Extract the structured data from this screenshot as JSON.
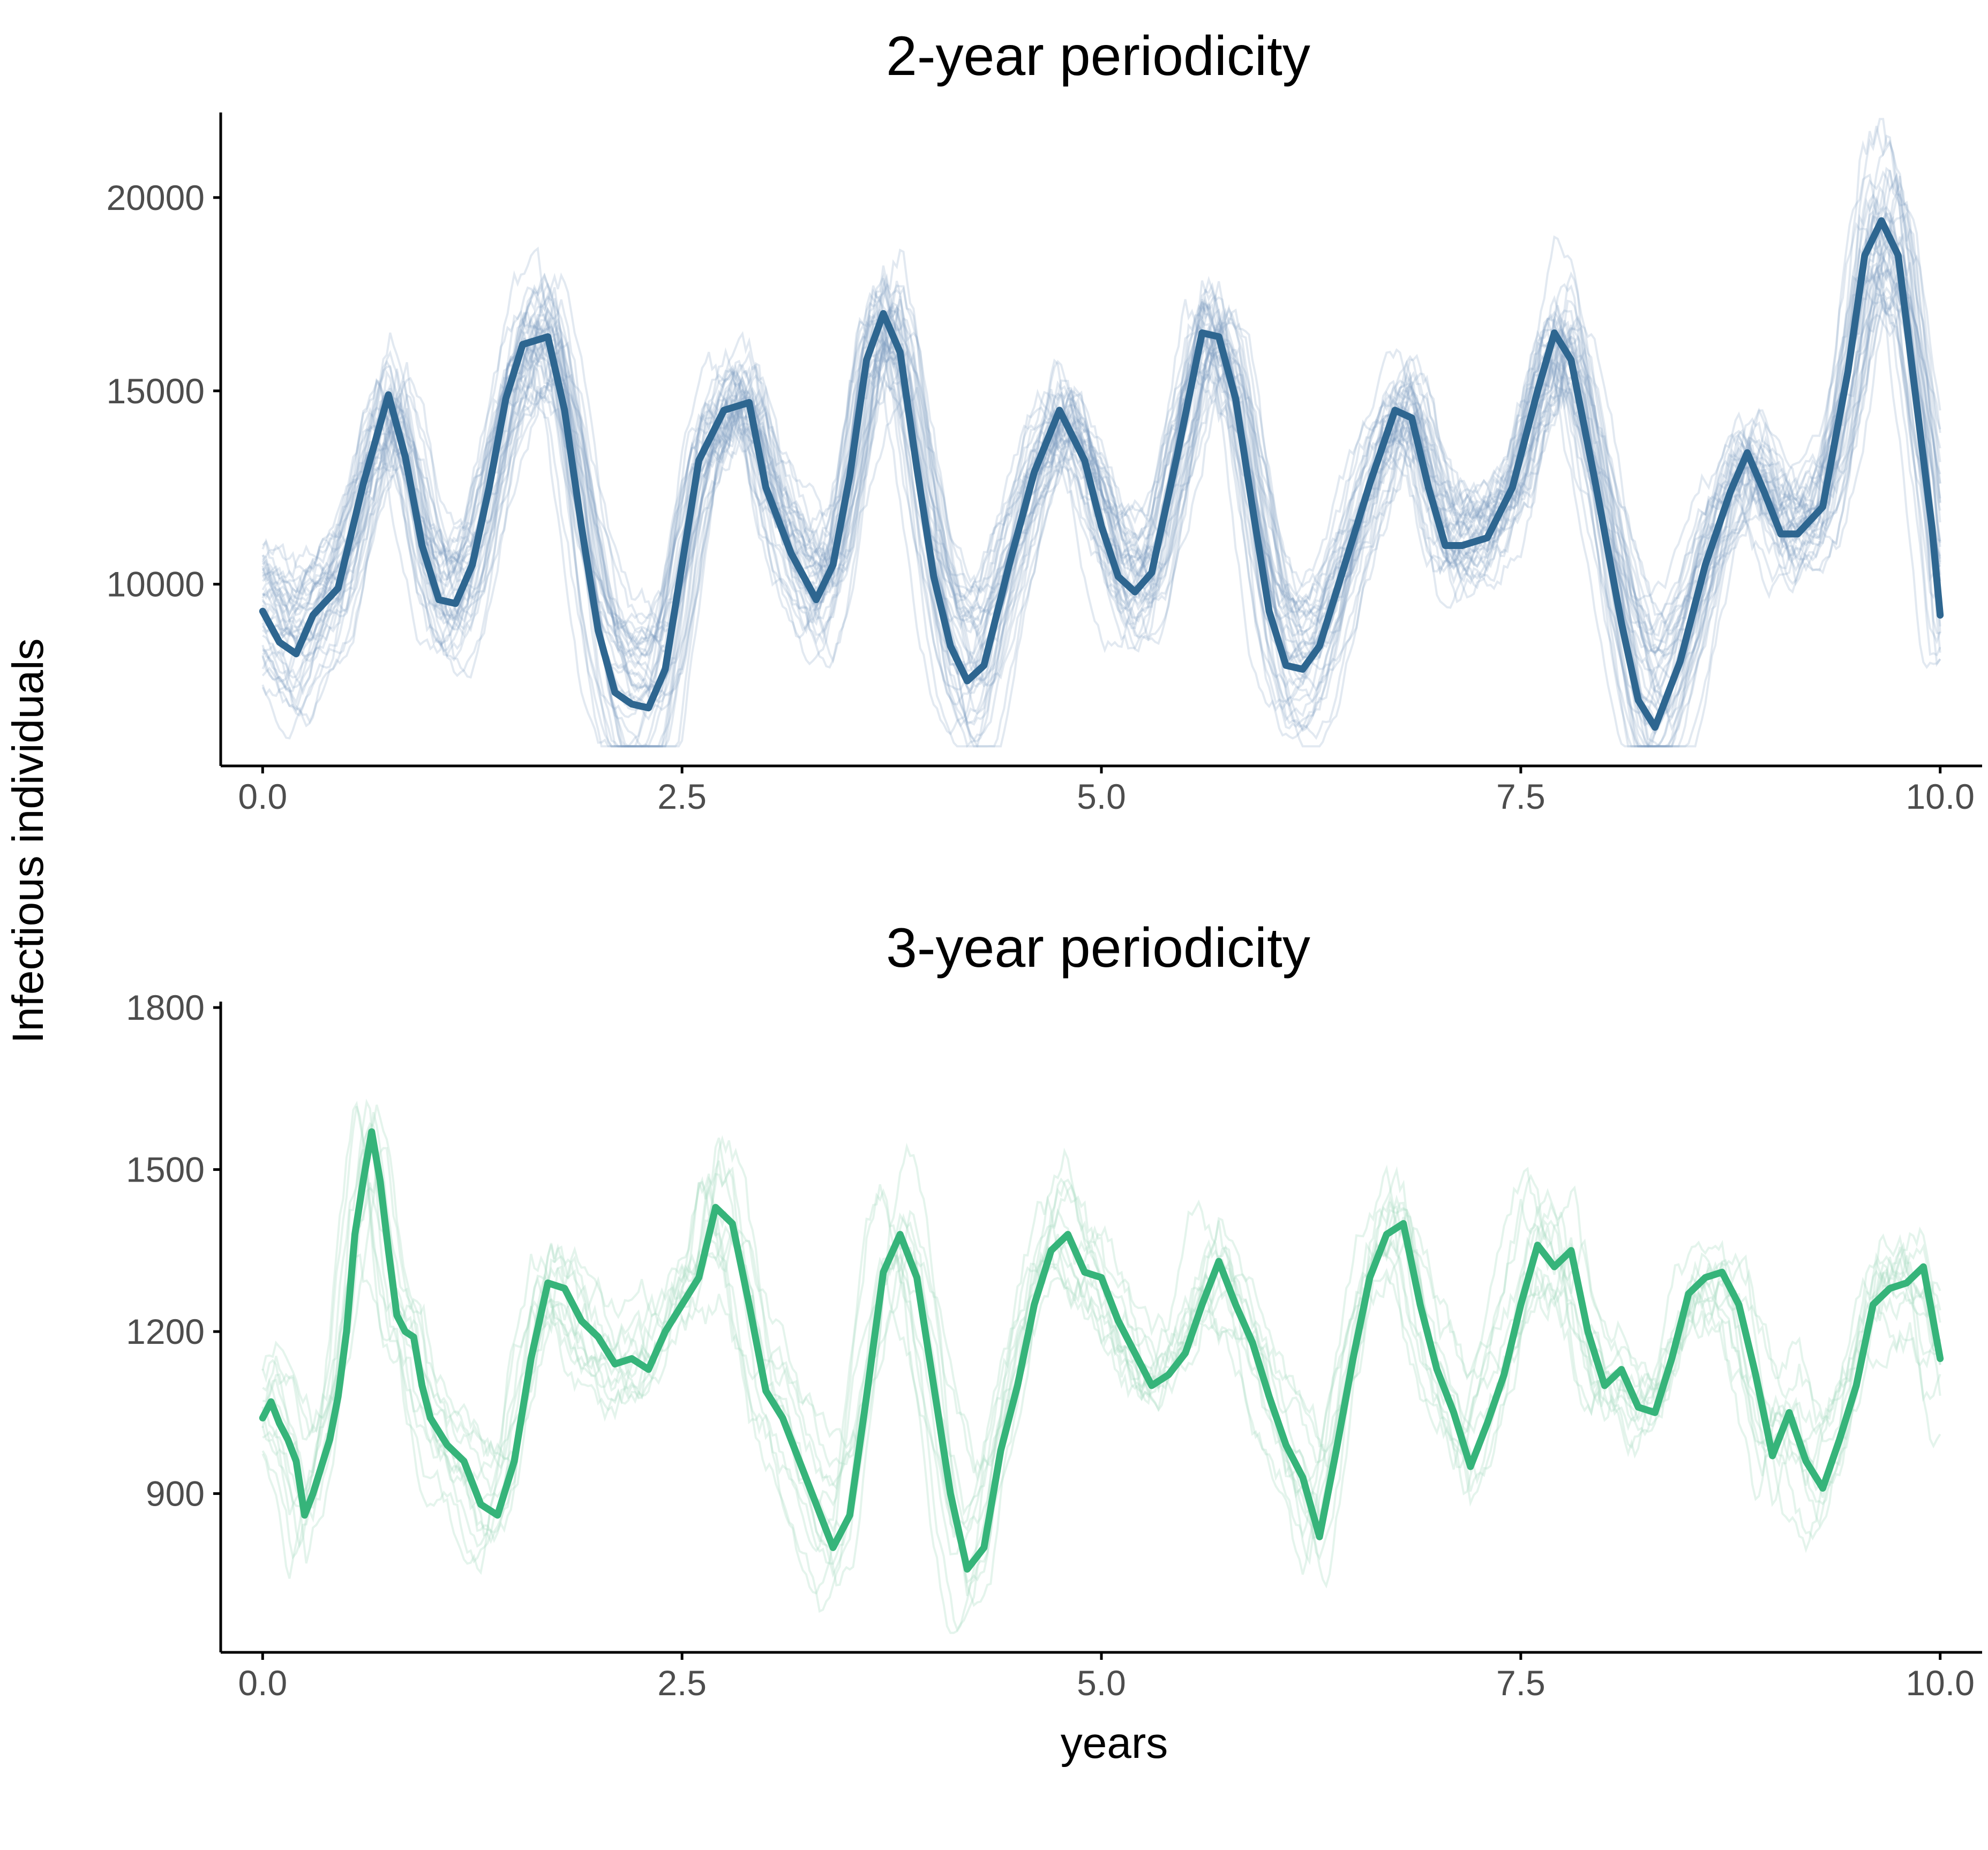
{
  "figure": {
    "ylabel": "Infectious individuals",
    "xlabel": "years"
  },
  "chart_data": [
    {
      "type": "line",
      "title": "2-year periodicity",
      "xlabel": "years",
      "ylabel": "Infectious individuals",
      "xlim": [
        -0.25,
        10.25
      ],
      "ylim": [
        5300,
        22200
      ],
      "xticks": [
        0,
        2.5,
        5,
        7.5,
        10
      ],
      "xtick_labels": [
        "0.0",
        "2.5",
        "5.0",
        "7.5",
        "10.0"
      ],
      "yticks": [
        10000,
        15000,
        20000
      ],
      "ytick_labels": [
        "10000",
        "15000",
        "20000"
      ],
      "grid": false,
      "legend": "none",
      "colors": {
        "highlight": "#2e6690",
        "ensemble": "#7b9bbd"
      },
      "ensemble_description": "many semi-transparent stochastic simulation trajectories oscillating between about 6000 and 21000",
      "ensemble_count": 40,
      "highlight_series": {
        "x": [
          0,
          0.1,
          0.2,
          0.3,
          0.45,
          0.6,
          0.75,
          0.85,
          0.95,
          1.05,
          1.15,
          1.25,
          1.35,
          1.45,
          1.55,
          1.7,
          1.8,
          1.9,
          2.0,
          2.1,
          2.2,
          2.3,
          2.4,
          2.5,
          2.6,
          2.75,
          2.9,
          3.0,
          3.15,
          3.3,
          3.4,
          3.5,
          3.6,
          3.7,
          3.8,
          3.9,
          4.0,
          4.1,
          4.2,
          4.3,
          4.45,
          4.6,
          4.75,
          4.9,
          5.0,
          5.1,
          5.2,
          5.3,
          5.45,
          5.6,
          5.7,
          5.8,
          5.9,
          6.0,
          6.1,
          6.2,
          6.3,
          6.45,
          6.6,
          6.75,
          6.85,
          6.95,
          7.05,
          7.15,
          7.3,
          7.45,
          7.6,
          7.7,
          7.8,
          7.95,
          8.1,
          8.2,
          8.3,
          8.45,
          8.6,
          8.75,
          8.85,
          8.95,
          9.05,
          9.15,
          9.3,
          9.45,
          9.55,
          9.65,
          9.75,
          9.85,
          9.95,
          10.0
        ],
        "y": [
          9300,
          8500,
          8200,
          9200,
          9900,
          12600,
          14900,
          13300,
          11000,
          9600,
          9500,
          10500,
          12500,
          14800,
          16200,
          16400,
          14500,
          11500,
          8800,
          7200,
          6900,
          6800,
          7800,
          10500,
          13200,
          14500,
          14700,
          12500,
          10800,
          9600,
          10500,
          12800,
          15800,
          17000,
          16000,
          13000,
          10200,
          8400,
          7500,
          7900,
          10500,
          12900,
          14500,
          13200,
          11500,
          10200,
          9800,
          10300,
          13300,
          16500,
          16400,
          14800,
          12000,
          9300,
          7900,
          7800,
          8400,
          10500,
          12600,
          14500,
          14300,
          12500,
          11000,
          11000,
          11200,
          12500,
          15000,
          16500,
          15800,
          12500,
          9000,
          7000,
          6300,
          8000,
          10500,
          12400,
          13400,
          12400,
          11300,
          11300,
          12000,
          15500,
          18500,
          19400,
          18500,
          15000,
          11500,
          9200
        ]
      }
    },
    {
      "type": "line",
      "title": "3-year periodicity",
      "xlabel": "years",
      "ylabel": "Infectious individuals",
      "xlim": [
        -0.25,
        10.25
      ],
      "ylim": [
        606,
        1811
      ],
      "xticks": [
        0,
        2.5,
        5,
        7.5,
        10
      ],
      "xtick_labels": [
        "0.0",
        "2.5",
        "5.0",
        "7.5",
        "10.0"
      ],
      "yticks": [
        900,
        1200,
        1500,
        1800
      ],
      "ytick_labels": [
        "900",
        "1200",
        "1500",
        "1800"
      ],
      "grid": false,
      "legend": "none",
      "colors": {
        "highlight": "#36b47a",
        "ensemble": "#a6dcc0"
      },
      "ensemble_description": "several faint stochastic simulation trajectories oscillating between about 700 and 1750",
      "ensemble_count": 12,
      "highlight_series": {
        "x": [
          0,
          0.05,
          0.1,
          0.15,
          0.2,
          0.25,
          0.3,
          0.35,
          0.4,
          0.45,
          0.5,
          0.55,
          0.6,
          0.65,
          0.7,
          0.75,
          0.8,
          0.85,
          0.9,
          0.95,
          1.0,
          1.1,
          1.2,
          1.3,
          1.4,
          1.5,
          1.6,
          1.7,
          1.8,
          1.9,
          2.0,
          2.1,
          2.2,
          2.3,
          2.4,
          2.5,
          2.6,
          2.7,
          2.8,
          2.9,
          3.0,
          3.1,
          3.2,
          3.3,
          3.4,
          3.5,
          3.6,
          3.7,
          3.8,
          3.9,
          4.0,
          4.1,
          4.2,
          4.3,
          4.4,
          4.5,
          4.6,
          4.7,
          4.8,
          4.9,
          5.0,
          5.1,
          5.2,
          5.3,
          5.4,
          5.5,
          5.6,
          5.7,
          5.8,
          5.9,
          6.0,
          6.1,
          6.2,
          6.3,
          6.4,
          6.5,
          6.6,
          6.7,
          6.8,
          6.9,
          7.0,
          7.1,
          7.2,
          7.3,
          7.4,
          7.5,
          7.6,
          7.7,
          7.8,
          7.9,
          8.0,
          8.1,
          8.2,
          8.3,
          8.4,
          8.5,
          8.6,
          8.7,
          8.8,
          8.9,
          9.0,
          9.1,
          9.2,
          9.3,
          9.4,
          9.5,
          9.6,
          9.7,
          9.8,
          9.9,
          10.0
        ],
        "y": [
          1040,
          1070,
          1030,
          1000,
          960,
          860,
          900,
          950,
          1000,
          1080,
          1200,
          1380,
          1480,
          1570,
          1480,
          1350,
          1230,
          1200,
          1190,
          1100,
          1040,
          990,
          960,
          880,
          860,
          960,
          1150,
          1290,
          1280,
          1220,
          1190,
          1140,
          1150,
          1130,
          1200,
          1250,
          1300,
          1430,
          1400,
          1250,
          1090,
          1040,
          960,
          880,
          800,
          860,
          1080,
          1310,
          1380,
          1300,
          1100,
          900,
          760,
          800,
          980,
          1100,
          1250,
          1350,
          1380,
          1310,
          1300,
          1220,
          1160,
          1100,
          1120,
          1160,
          1250,
          1330,
          1250,
          1180,
          1080,
          990,
          930,
          820,
          980,
          1150,
          1300,
          1380,
          1400,
          1250,
          1130,
          1050,
          950,
          1030,
          1120,
          1250,
          1360,
          1320,
          1350,
          1200,
          1100,
          1130,
          1060,
          1050,
          1150,
          1270,
          1300,
          1310,
          1250,
          1120,
          970,
          1050,
          960,
          910,
          1000,
          1100,
          1250,
          1280,
          1290,
          1320,
          1150
        ]
      }
    }
  ]
}
